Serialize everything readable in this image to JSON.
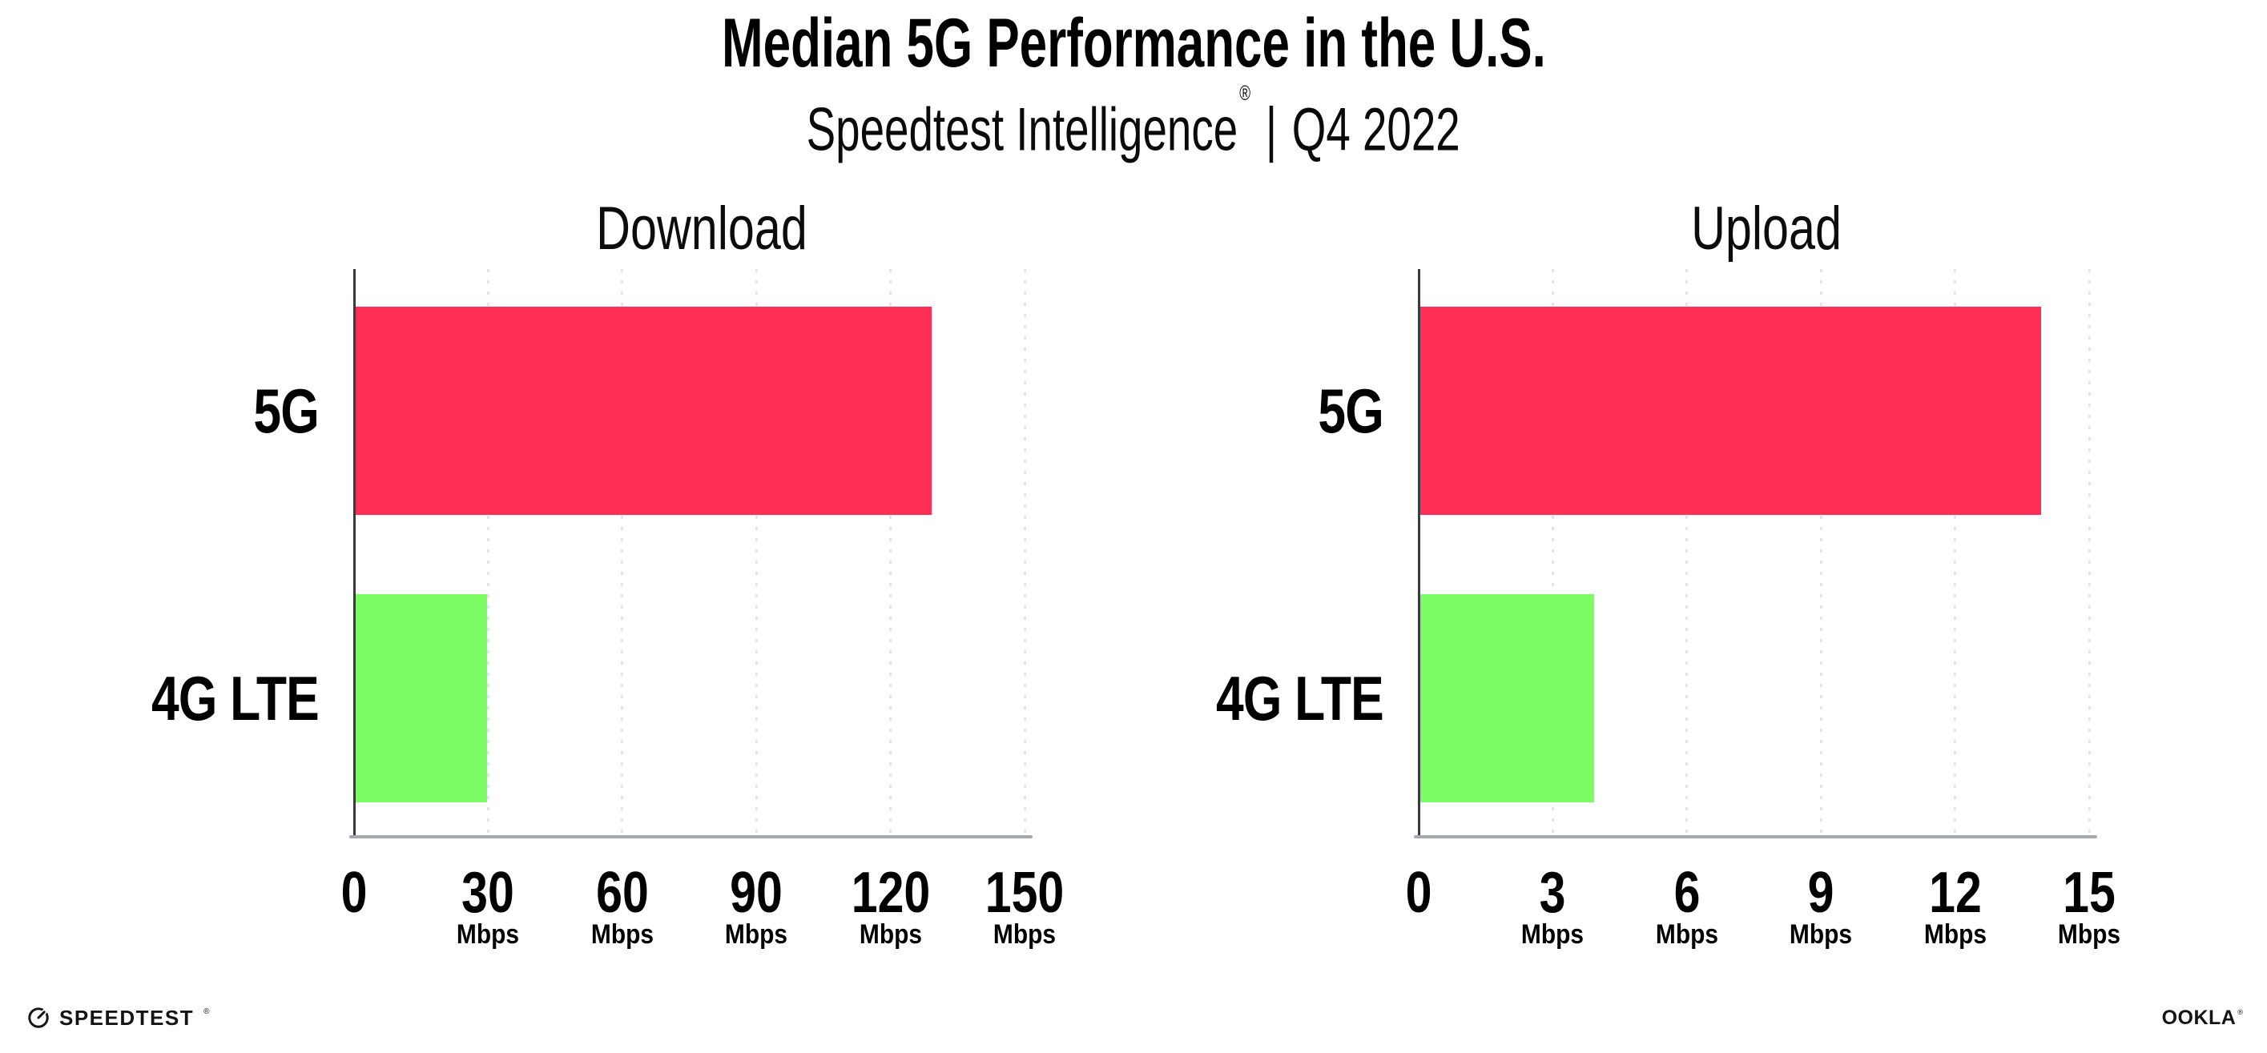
{
  "title": "Median 5G Performance in the U.S.",
  "subtitle": {
    "brand": "Speedtest Intelligence",
    "reg_mark": "®",
    "separator": "|",
    "period": "Q4 2022"
  },
  "colors": {
    "bar_5g": "#ff2e56",
    "bar_4g_lte": "#7dfc66",
    "grid_dots": "#e3e3ed",
    "x_axis": "#a8a8b0",
    "y_axis": "#3a3a40",
    "text": "#000000"
  },
  "chart_data": [
    {
      "type": "bar",
      "orientation": "horizontal",
      "title": "Download",
      "categories": [
        "5G",
        "4G LTE"
      ],
      "values": [
        129,
        29.5
      ],
      "bar_colors": [
        "#ff2e56",
        "#7dfc66"
      ],
      "unit": "Mbps",
      "xlim": [
        0,
        150
      ],
      "xticks": [
        0,
        30,
        60,
        90,
        120,
        150
      ],
      "grid": "vertical-dotted",
      "legend": "none"
    },
    {
      "type": "bar",
      "orientation": "horizontal",
      "title": "Upload",
      "categories": [
        "5G",
        "4G LTE"
      ],
      "values": [
        13.9,
        3.9
      ],
      "bar_colors": [
        "#ff2e56",
        "#7dfc66"
      ],
      "unit": "Mbps",
      "xlim": [
        0,
        15
      ],
      "xticks": [
        0,
        3,
        6,
        9,
        12,
        15
      ],
      "grid": "vertical-dotted",
      "legend": "none"
    }
  ],
  "footer": {
    "speedtest_label": "SPEEDTEST",
    "speedtest_mark": "®",
    "ookla_label": "OOKLA",
    "ookla_mark": "®"
  }
}
